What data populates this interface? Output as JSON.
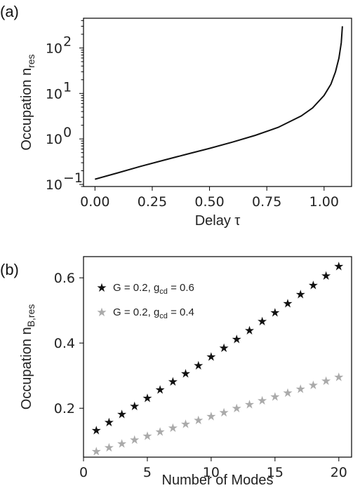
{
  "chart_data": [
    {
      "panel_label": "(a)",
      "type": "line",
      "xlabel": "Delay τ",
      "ylabel": "Occupation n",
      "ylabel_sub": "res",
      "yscale": "log",
      "xlim": [
        -0.05,
        1.12
      ],
      "ylim": [
        0.09,
        450
      ],
      "xticks": [
        0.0,
        0.25,
        0.5,
        0.75,
        1.0
      ],
      "xtick_labels": [
        "0.00",
        "0.25",
        "0.50",
        "0.75",
        "1.00"
      ],
      "yticks": [
        0.1,
        1,
        10,
        100
      ],
      "ytick_base": [
        "10",
        "10",
        "10",
        "10"
      ],
      "ytick_exp": [
        "−1",
        "0",
        "1",
        "2"
      ],
      "series": [
        {
          "color": "#111111",
          "x": [
            0.0,
            0.1,
            0.2,
            0.3,
            0.4,
            0.5,
            0.6,
            0.7,
            0.8,
            0.9,
            0.95,
            1.0,
            1.03,
            1.05,
            1.065,
            1.075,
            1.08
          ],
          "y": [
            0.13,
            0.18,
            0.25,
            0.34,
            0.46,
            0.62,
            0.85,
            1.2,
            1.8,
            3.2,
            4.8,
            9.0,
            16.0,
            30.0,
            60.0,
            130.0,
            300.0
          ]
        }
      ]
    },
    {
      "panel_label": "(b)",
      "type": "scatter",
      "xlabel": "Number of Modes",
      "ylabel": "Occupation n",
      "ylabel_sub": "B,res",
      "xlim": [
        0,
        21
      ],
      "ylim": [
        0.05,
        0.665
      ],
      "xticks": [
        0,
        5,
        10,
        15,
        20
      ],
      "xtick_labels": [
        "0",
        "5",
        "10",
        "15",
        "20"
      ],
      "yticks": [
        0.2,
        0.4,
        0.6
      ],
      "ytick_labels": [
        "0.2",
        "0.4",
        "0.6"
      ],
      "legend_position": "top-left",
      "series": [
        {
          "name_main": "G = 0.2, g",
          "name_sub": "cd",
          "name_tail": " = 0.6",
          "color": "#111111",
          "marker": "star",
          "x": [
            1,
            2,
            3,
            4,
            5,
            6,
            7,
            8,
            9,
            10,
            11,
            12,
            13,
            14,
            15,
            16,
            17,
            18,
            19,
            20
          ],
          "y": [
            0.133,
            0.158,
            0.182,
            0.207,
            0.232,
            0.257,
            0.282,
            0.307,
            0.332,
            0.359,
            0.385,
            0.412,
            0.439,
            0.467,
            0.494,
            0.522,
            0.55,
            0.578,
            0.607,
            0.636
          ]
        },
        {
          "name_main": "G = 0.2, g",
          "name_sub": "cd",
          "name_tail": " = 0.4",
          "color": "#aaaaaa",
          "marker": "star",
          "x": [
            1,
            2,
            3,
            4,
            5,
            6,
            7,
            8,
            9,
            10,
            11,
            12,
            13,
            14,
            15,
            16,
            17,
            18,
            19,
            20
          ],
          "y": [
            0.068,
            0.08,
            0.092,
            0.104,
            0.116,
            0.128,
            0.14,
            0.152,
            0.164,
            0.176,
            0.188,
            0.2,
            0.212,
            0.224,
            0.236,
            0.248,
            0.26,
            0.272,
            0.284,
            0.296
          ]
        }
      ]
    }
  ]
}
